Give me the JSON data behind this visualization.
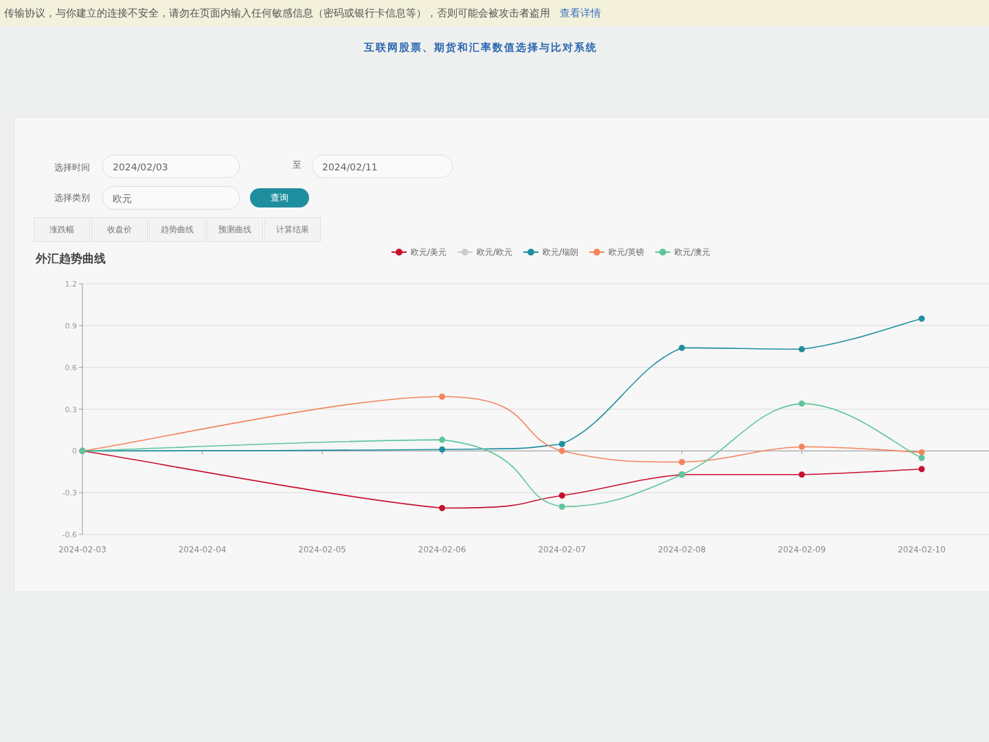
{
  "chart_data": {
    "type": "line",
    "title": "外汇趋势曲线",
    "annotations": [
      "传输协议，与你建立的连接不安全，请勿在页面内输入任何敏感信息（密码或银行卡信息等），否则可能会被攻击者盗用",
      "查看详情",
      "互联网股票、期货和汇率数值选择与比对系统",
      "选择时间",
      "2024/02/03",
      "至",
      "2024/02/11",
      "选择类别",
      "欧元",
      "查询",
      "涨跌幅",
      "收盘价",
      "趋势曲线",
      "预测曲线",
      "计算结果"
    ],
    "categories": [
      "2024-02-03",
      "2024-02-04",
      "2024-02-05",
      "2024-02-06",
      "2024-02-07",
      "2024-02-08",
      "2024-02-09",
      "2024-02-10"
    ],
    "series": [
      {
        "name": "欧元/美元",
        "color": "#c8102e",
        "values": [
          0,
          null,
          null,
          -0.41,
          -0.32,
          -0.17,
          -0.17,
          -0.13
        ]
      },
      {
        "name": "欧元/欧元",
        "color": "#cccccc",
        "values": [
          null,
          null,
          null,
          null,
          null,
          null,
          null,
          null
        ]
      },
      {
        "name": "欧元/瑞朗",
        "color": "#1f8f9f",
        "values": [
          0,
          null,
          null,
          0.01,
          0.05,
          0.74,
          0.73,
          0.95
        ]
      },
      {
        "name": "欧元/英镑",
        "color": "#f4845f",
        "values": [
          0,
          null,
          null,
          0.39,
          0,
          -0.08,
          0.03,
          -0.01
        ]
      },
      {
        "name": "欧元/澳元",
        "color": "#5fc59a",
        "values": [
          0,
          null,
          null,
          0.08,
          -0.4,
          -0.17,
          0.34,
          -0.05
        ]
      }
    ],
    "ylim": [
      -0.6,
      1.2
    ],
    "yticks": [
      -0.6,
      -0.3,
      0,
      0.3,
      0.6,
      0.9,
      1.2
    ],
    "grid": "y",
    "legend": "top",
    "marker": "circle",
    "line_style": "solid"
  }
}
